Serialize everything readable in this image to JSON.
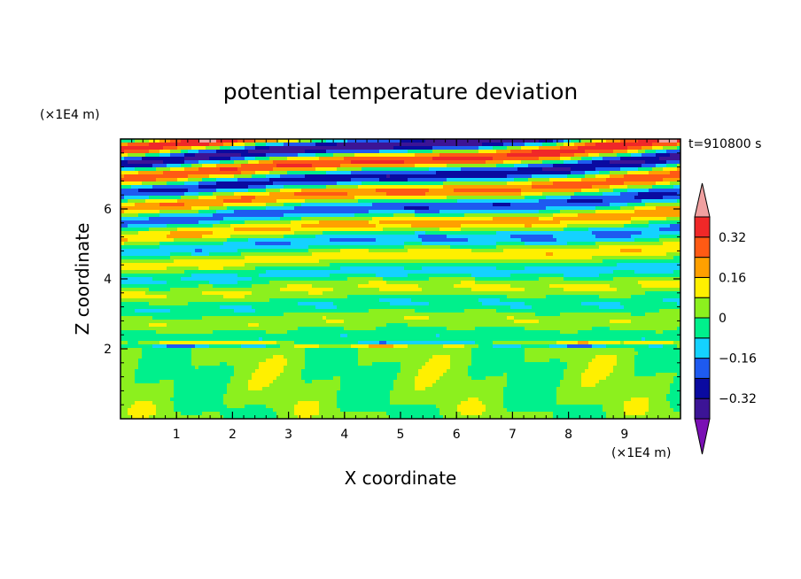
{
  "chart_data": {
    "type": "heatmap",
    "title": "potential temperature deviation",
    "xlabel": "X coordinate",
    "ylabel": "Z coordinate",
    "x_unit": "(×1E4 m)",
    "y_unit": "(×1E4 m)",
    "time_label": "t=910800 s",
    "xlim": [
      0,
      10
    ],
    "ylim": [
      0,
      8
    ],
    "x_ticks": [
      1,
      2,
      3,
      4,
      5,
      6,
      7,
      8,
      9
    ],
    "y_ticks": [
      2,
      4,
      6
    ],
    "colorbar": {
      "levels": [
        -0.4,
        -0.32,
        -0.24,
        -0.16,
        -0.08,
        0,
        0.08,
        0.16,
        0.24,
        0.32,
        0.4
      ],
      "tick_values": [
        -0.32,
        -0.16,
        0,
        0.16,
        0.32
      ],
      "tick_labels": [
        "−0.32",
        "−0.16",
        "0",
        "0.16",
        "0.32"
      ],
      "colors": [
        "#7a10b4",
        "#3c1496",
        "#0a0aa0",
        "#1e5af0",
        "#14d2ff",
        "#00f08c",
        "#8cf01e",
        "#fff000",
        "#ffa000",
        "#ff5a14",
        "#f02828",
        "#f0a0a0"
      ],
      "extend": "both"
    }
  }
}
